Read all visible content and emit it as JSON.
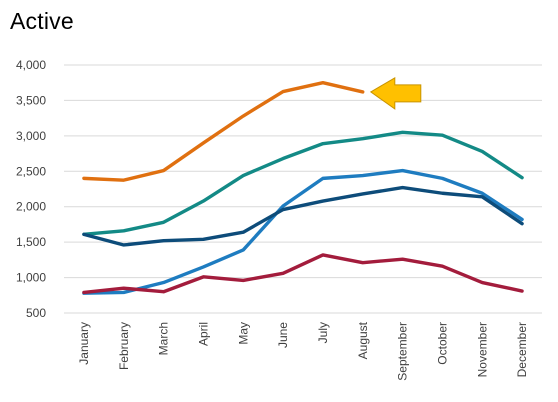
{
  "chart_data": {
    "type": "line",
    "title": "Active",
    "xlabel": "",
    "ylabel": "",
    "ylim": [
      500,
      4000
    ],
    "yticks": [
      500,
      1000,
      1500,
      2000,
      2500,
      3000,
      3500,
      4000
    ],
    "ytick_labels": [
      "500",
      "1,000",
      "1,500",
      "2,000",
      "2,500",
      "3,000",
      "3,500",
      "4,000"
    ],
    "grid": "horizontal",
    "legend": "none",
    "categories": [
      "January",
      "February",
      "March",
      "April",
      "May",
      "June",
      "July",
      "August",
      "September",
      "October",
      "November",
      "December"
    ],
    "series": [
      {
        "color": "#E07010",
        "values": [
          2400,
          2375,
          2510,
          2900,
          3280,
          3625,
          3750,
          3620,
          null,
          null,
          null,
          null
        ]
      },
      {
        "color": "#138A86",
        "values": [
          1610,
          1660,
          1780,
          2080,
          2440,
          2680,
          2890,
          2960,
          3050,
          3010,
          2780,
          2410
        ]
      },
      {
        "color": "#1E7CC0",
        "values": [
          780,
          790,
          930,
          1150,
          1390,
          2010,
          2400,
          2440,
          2510,
          2400,
          2190,
          1820
        ]
      },
      {
        "color": "#0D4C7A",
        "values": [
          1610,
          1460,
          1520,
          1540,
          1640,
          1960,
          2080,
          2180,
          2270,
          2190,
          2140,
          1760
        ]
      },
      {
        "color": "#A31C3C",
        "values": [
          790,
          850,
          800,
          1010,
          960,
          1060,
          1320,
          1210,
          1260,
          1160,
          930,
          810
        ]
      }
    ],
    "annotation": {
      "type": "arrow",
      "points_to": "August",
      "color": "#FFC000",
      "outline": "#C99400"
    }
  }
}
